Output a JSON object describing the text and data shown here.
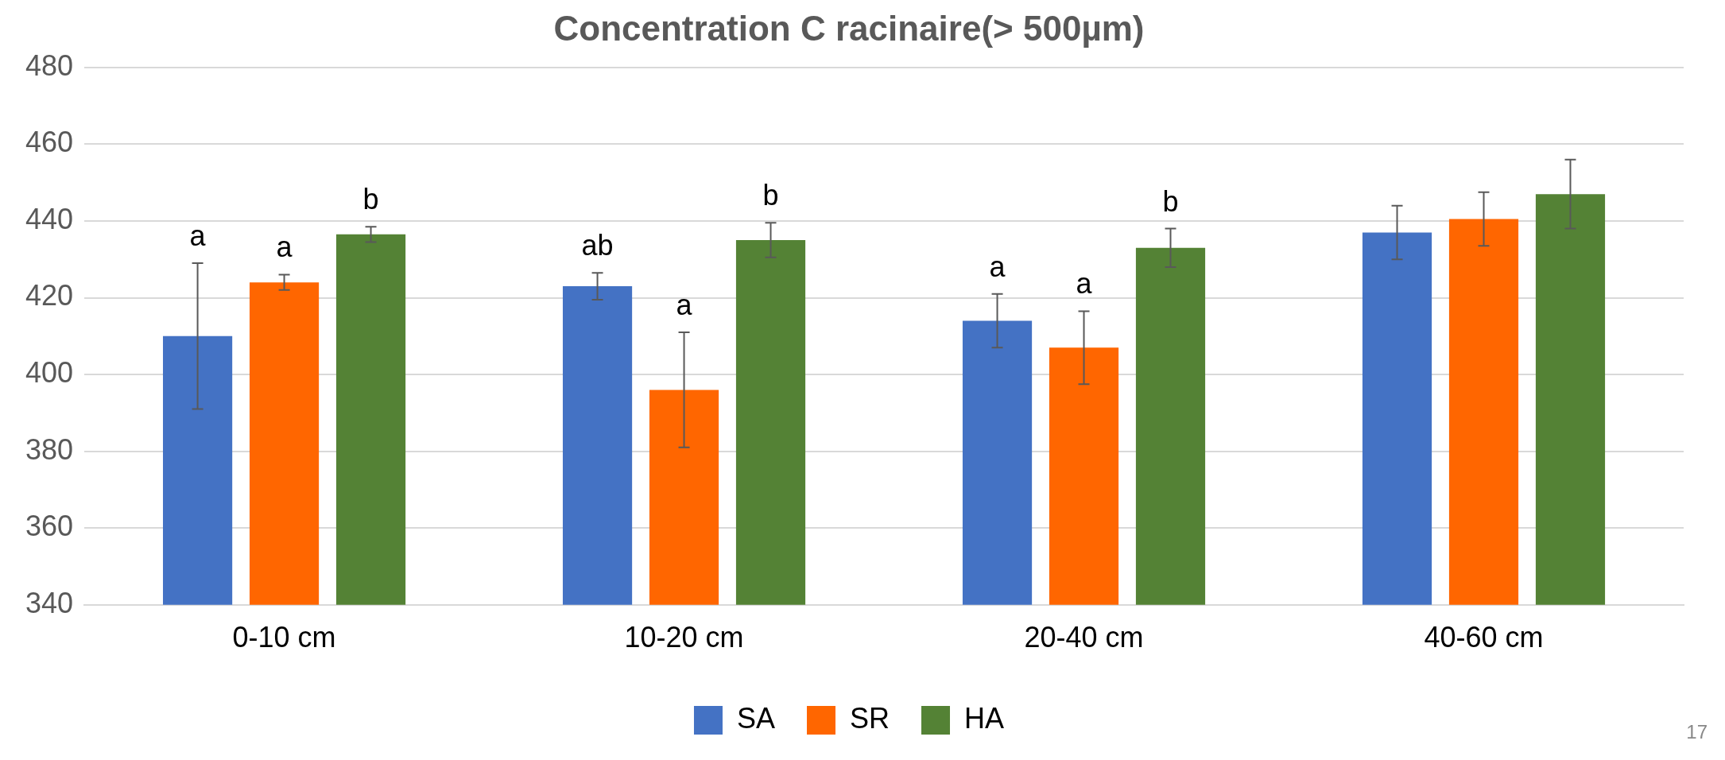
{
  "chart_data": {
    "type": "bar",
    "title": "Concentration C racinaire(> 500µm)",
    "categories": [
      "0-10 cm",
      "10-20 cm",
      "20-40 cm",
      "40-60 cm"
    ],
    "series": [
      {
        "name": "SA",
        "color": "#4472c4",
        "values": [
          410,
          423,
          414,
          437
        ],
        "errors": [
          19,
          3.5,
          7,
          7
        ],
        "value_labels": [
          "a",
          "ab",
          "a",
          null
        ]
      },
      {
        "name": "SR",
        "color": "#ff6600",
        "values": [
          424,
          396,
          407,
          440.5
        ],
        "errors": [
          2,
          15,
          9.5,
          7
        ],
        "value_labels": [
          "a",
          "a",
          "a",
          null
        ]
      },
      {
        "name": "HA",
        "color": "#548235",
        "values": [
          436.5,
          435,
          433,
          447
        ],
        "errors": [
          2,
          4.5,
          5,
          9
        ],
        "value_labels": [
          "b",
          "b",
          "b",
          null
        ]
      }
    ],
    "ylim": [
      340,
      480
    ],
    "yticks": [
      340,
      360,
      380,
      400,
      420,
      440,
      460,
      480
    ],
    "grid": "y",
    "legend": "bottom",
    "annotations": [
      "17"
    ]
  }
}
